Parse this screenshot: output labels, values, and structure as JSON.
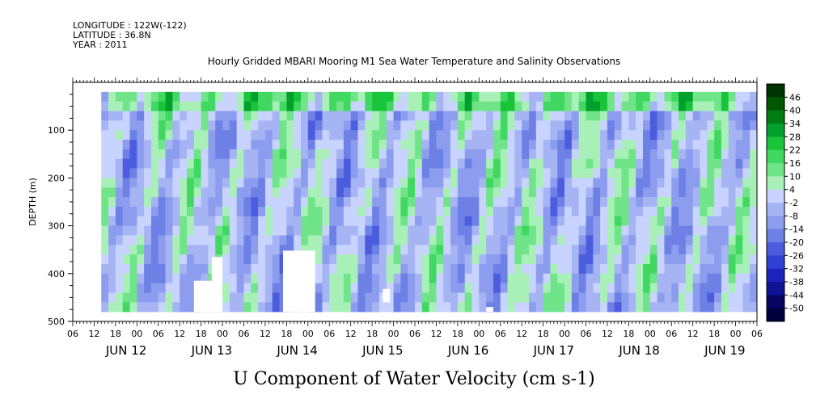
{
  "header": {
    "longitude": "LONGITUDE : 122W(-122)",
    "latitude": "LATITUDE : 36.8N",
    "year": "YEAR : 2011"
  },
  "chart_data": {
    "type": "heatmap",
    "title": "Hourly Gridded MBARI Mooring M1 Sea Water Temperature and Salinity Observations",
    "xlabel": "",
    "ylabel": "DEPTH (m)",
    "bottom_title": "U Component of Water Velocity (cm s-1)",
    "y_range": [
      0,
      500
    ],
    "y_reversed": true,
    "y_ticks": [
      100,
      200,
      300,
      400,
      500
    ],
    "x_hour_ticks": [
      "06",
      "12",
      "18",
      "00",
      "06",
      "12",
      "18",
      "00",
      "06",
      "12",
      "18",
      "00",
      "06",
      "12",
      "18",
      "00",
      "06",
      "12",
      "18",
      "00",
      "06",
      "12",
      "18",
      "00",
      "06",
      "12",
      "18",
      "00",
      "06",
      "12",
      "18",
      "00",
      "06"
    ],
    "x_day_labels": [
      "JUN 12",
      "JUN 13",
      "JUN 14",
      "JUN 15",
      "JUN 16",
      "JUN 17",
      "JUN 18",
      "JUN 19"
    ],
    "x_range_hours": [
      0,
      192
    ],
    "data_start_hour": 8,
    "data_depth_range": [
      20,
      480
    ],
    "colorbar_levels": [
      "46",
      "40",
      "34",
      "28",
      "22",
      "16",
      "10",
      "4",
      "-2",
      "-8",
      "-14",
      "-20",
      "-26",
      "-32",
      "-38",
      "-44",
      "-50"
    ],
    "colorbar_colors": [
      "#003400",
      "#005800",
      "#007c12",
      "#00a02c",
      "#18c43a",
      "#40d860",
      "#70e488",
      "#a8f0b8",
      "#c8d4ff",
      "#a6b4f4",
      "#8c9cee",
      "#6c80e6",
      "#4c5cde",
      "#3040d4",
      "#1c24bc",
      "#101494",
      "#060662",
      "#00003e"
    ],
    "grid": false,
    "legend": "colorbar-right",
    "missing_data_regions": [
      {
        "hour_start": 34,
        "hour_end": 40,
        "depth_top": 415,
        "depth_bottom": 480
      },
      {
        "hour_start": 39,
        "hour_end": 42,
        "depth_top": 365,
        "depth_bottom": 480
      },
      {
        "hour_start": 59,
        "hour_end": 68,
        "depth_top": 352,
        "depth_bottom": 480
      },
      {
        "hour_start": 87,
        "hour_end": 89,
        "depth_top": 432,
        "depth_bottom": 460
      },
      {
        "hour_start": 116,
        "hour_end": 118,
        "depth_top": 470,
        "depth_bottom": 480
      }
    ]
  }
}
